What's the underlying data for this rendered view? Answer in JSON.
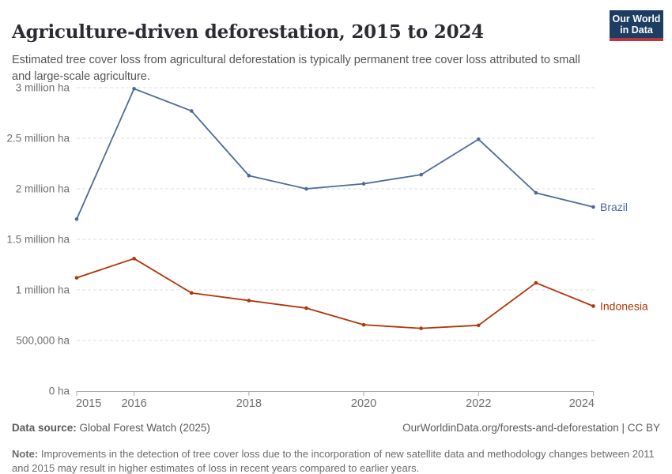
{
  "header": {
    "title": "Agriculture-driven deforestation, 2015 to 2024",
    "subtitle": "Estimated tree cover loss from agricultural deforestation is typically permanent tree cover loss attributed to small and large-scale agriculture.",
    "logo": {
      "line1": "Our World",
      "line2": "in Data",
      "bg_color": "#1d3d63",
      "bar_color": "#c0343f"
    }
  },
  "chart_data": {
    "type": "line",
    "title": "Agriculture-driven deforestation, 2015 to 2024",
    "xlabel": "",
    "ylabel": "",
    "x": [
      2015,
      2016,
      2017,
      2018,
      2019,
      2020,
      2021,
      2022,
      2023,
      2024
    ],
    "series": [
      {
        "name": "Brazil",
        "color": "#4c6a9c",
        "values": [
          1700000,
          2990000,
          2770000,
          2130000,
          2000000,
          2050000,
          2140000,
          2490000,
          1960000,
          1820000
        ]
      },
      {
        "name": "Indonesia",
        "color": "#b13507",
        "values": [
          1120000,
          1310000,
          970000,
          895000,
          820000,
          655000,
          620000,
          650000,
          1070000,
          840000
        ]
      }
    ],
    "ylim": [
      0,
      3000000
    ],
    "yticks": [
      {
        "value": 0,
        "label": "0 ha"
      },
      {
        "value": 500000,
        "label": "500,000 ha"
      },
      {
        "value": 1000000,
        "label": "1 million ha"
      },
      {
        "value": 1500000,
        "label": "1.5 million ha"
      },
      {
        "value": 2000000,
        "label": "2 million ha"
      },
      {
        "value": 2500000,
        "label": "2.5 million ha"
      },
      {
        "value": 3000000,
        "label": "3 million ha"
      }
    ],
    "xticks": [
      2015,
      2016,
      2018,
      2020,
      2022,
      2024
    ],
    "grid": "horizontal-dashed",
    "legend_position": "end-of-line-labels"
  },
  "footer": {
    "datasource_label": "Data source:",
    "datasource_value": " Global Forest Watch (2025)",
    "attribution": "OurWorldinData.org/forests-and-deforestation | CC BY",
    "note_label": "Note:",
    "note_text": " Improvements in the detection of tree cover loss due to the incorporation of new satellite data and methodology changes between 2011 and 2015 may result in higher estimates of loss in recent years compared to earlier years."
  },
  "colors": {
    "background": "#ffffff",
    "title_text": "#2b2b35",
    "subtitle_text": "#555555",
    "axis_label_text": "#6e6e6e",
    "gridline": "#dedede",
    "axis_line": "#a7a7a7",
    "footer_text": "#5b5b5b",
    "brazil_line": "#4c6a9c",
    "indonesia_line": "#b13507"
  }
}
